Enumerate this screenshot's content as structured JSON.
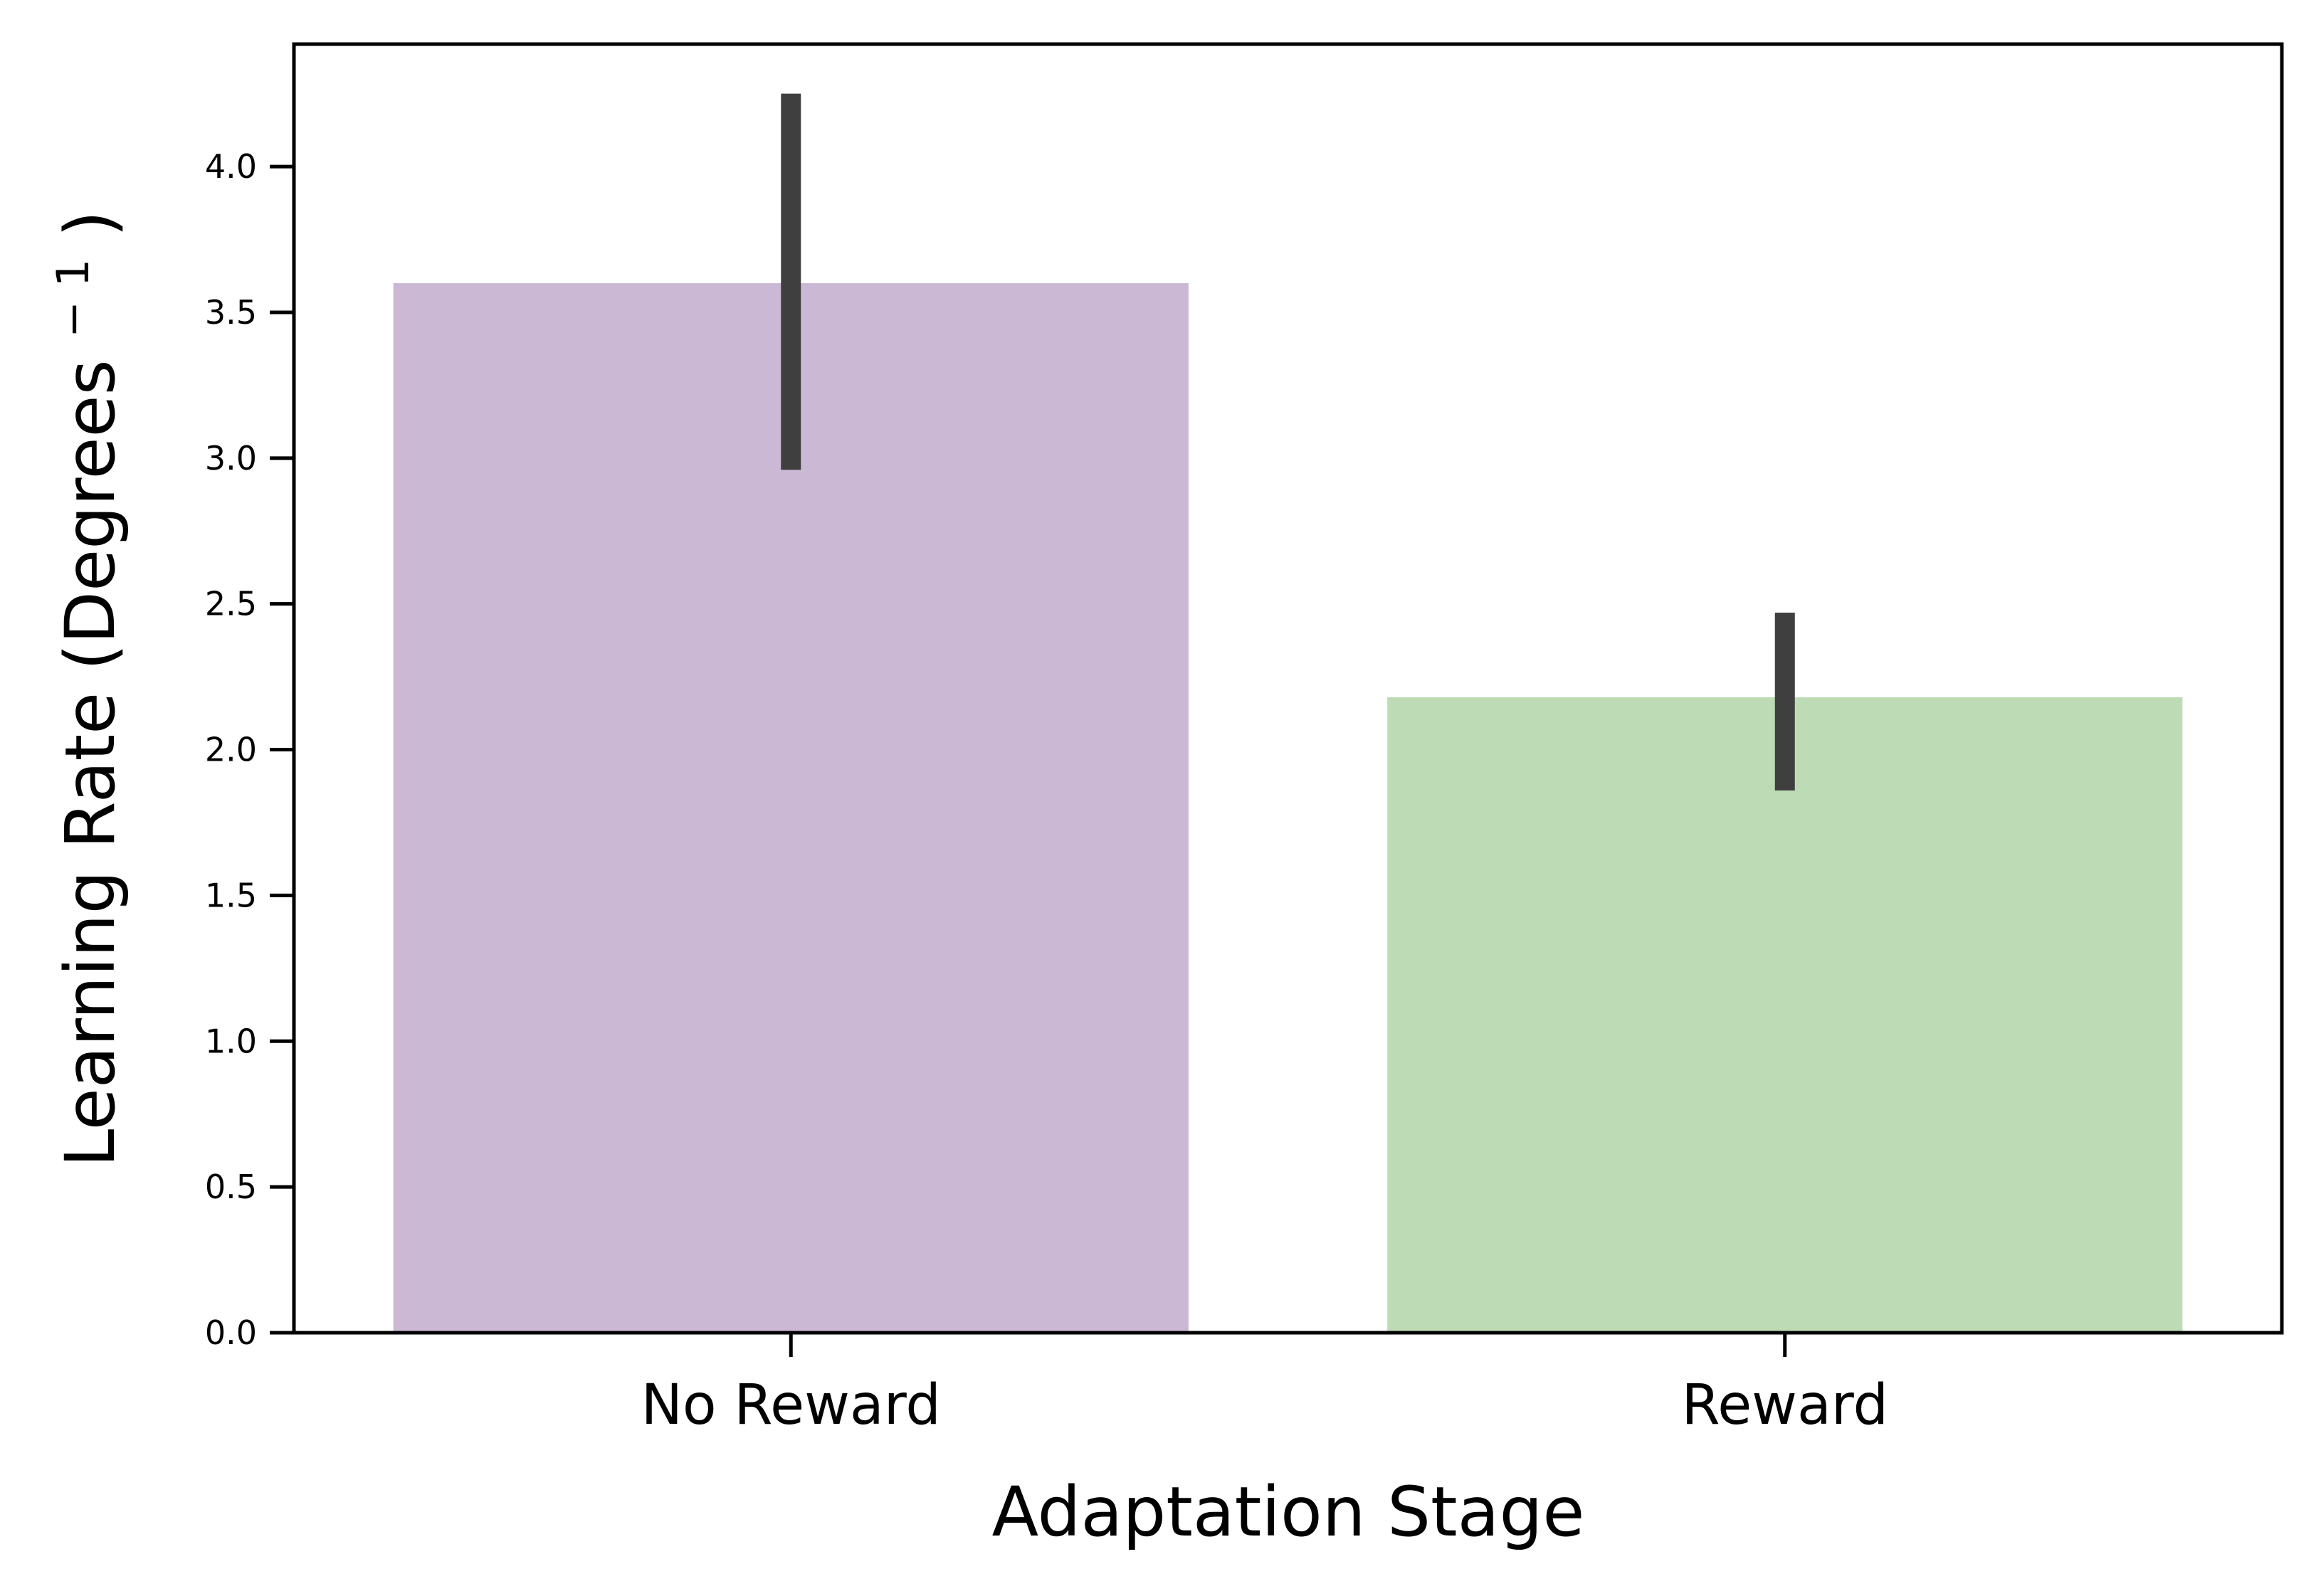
{
  "chart_data": {
    "type": "bar",
    "title": "",
    "xlabel": "Adaptation Stage",
    "ylabel": "Learning Rate (Degrees",
    "ylabel_sup": "− 1",
    "ylabel_close": ")",
    "categories": [
      "No Reward",
      "Reward"
    ],
    "values": [
      3.6,
      2.18
    ],
    "error_low": [
      2.96,
      1.86
    ],
    "error_high": [
      4.25,
      2.47
    ],
    "colors": [
      "#cbb8d4",
      "#bddcb6"
    ],
    "error_color": "#3f3f3f",
    "ylim": [
      0,
      4.42
    ],
    "yticks": [
      0.0,
      0.5,
      1.0,
      1.5,
      2.0,
      2.5,
      3.0,
      3.5,
      4.0
    ],
    "ytick_labels": [
      "0.0",
      "0.5",
      "1.0",
      "1.5",
      "2.0",
      "2.5",
      "3.0",
      "3.5",
      "4.0"
    ],
    "grid": false,
    "legend": "none"
  }
}
